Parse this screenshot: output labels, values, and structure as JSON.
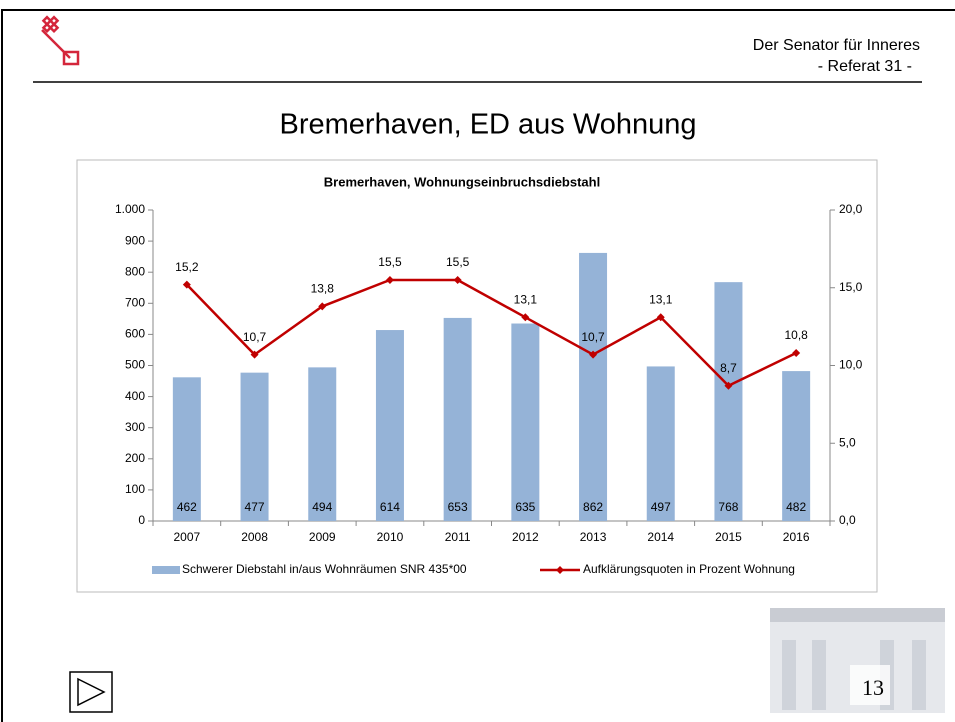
{
  "header": {
    "line1": "Der Senator für Inneres",
    "line2": "- Referat 31 -"
  },
  "slide_title": "Bremerhaven, ED aus Wohnung",
  "page_number": "13",
  "chart_data": {
    "type": "bar",
    "title": "Bremerhaven, Wohnungseinbruchsdiebstahl",
    "categories": [
      "2007",
      "2008",
      "2009",
      "2010",
      "2011",
      "2012",
      "2013",
      "2014",
      "2015",
      "2016"
    ],
    "series": [
      {
        "name": "Schwerer Diebstahl in/aus Wohnräumen SNR 435*00",
        "type": "bar",
        "color": "#95b3d7",
        "values": [
          462,
          477,
          494,
          614,
          653,
          635,
          862,
          497,
          768,
          482
        ]
      },
      {
        "name": "Aufklärungsquoten in Prozent Wohnung",
        "type": "line",
        "axis": "y2",
        "color": "#c00000",
        "values": [
          15.2,
          10.7,
          13.8,
          15.5,
          15.5,
          13.1,
          10.7,
          13.1,
          8.7,
          10.8
        ],
        "value_labels": [
          "15,2",
          "10,7",
          "13,8",
          "15,5",
          "15,5",
          "13,1",
          "10,7",
          "13,1",
          "8,7",
          "10,8"
        ]
      }
    ],
    "ylim": [
      0,
      1000
    ],
    "yticks": [
      0,
      100,
      200,
      300,
      400,
      500,
      600,
      700,
      800,
      900,
      {
        "value": 1000,
        "label": "1.000"
      }
    ],
    "y2lim": [
      0,
      20
    ],
    "y2ticks": [
      {
        "value": 0,
        "label": "0,0"
      },
      {
        "value": 5,
        "label": "5,0"
      },
      {
        "value": 10,
        "label": "10,0"
      },
      {
        "value": 15,
        "label": "15,0"
      },
      {
        "value": 20,
        "label": "20,0"
      }
    ],
    "legend": "bottom"
  }
}
